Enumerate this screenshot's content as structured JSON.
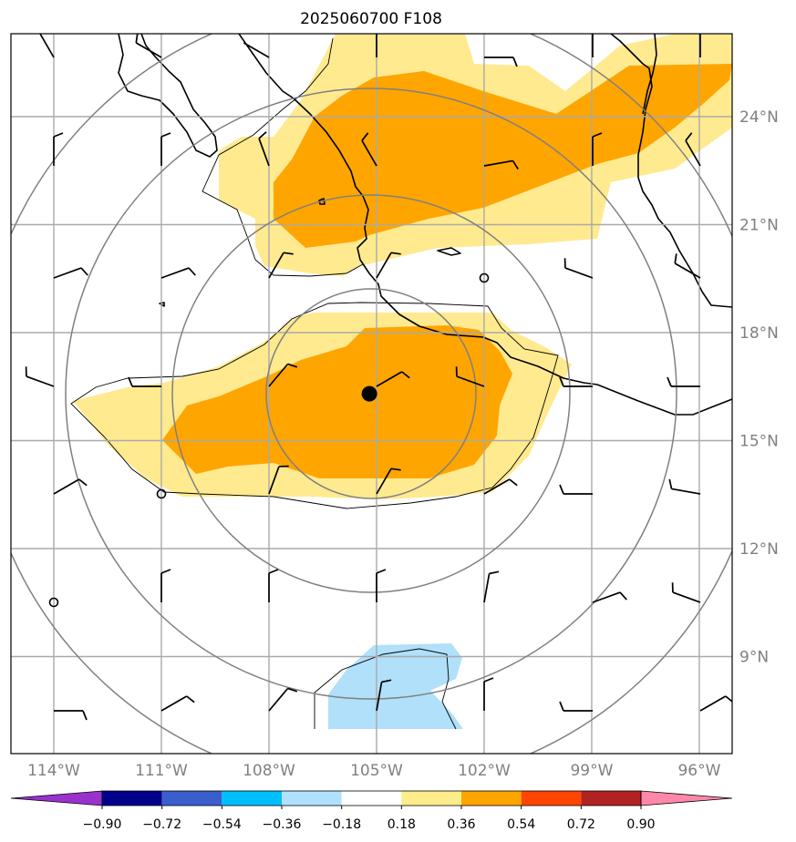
{
  "title": "2025060700 F108",
  "map": {
    "lon_range": [
      -115.2,
      -95.2
    ],
    "lat_range": [
      6.7,
      26.2
    ],
    "lat_ticks": [
      {
        "value": 24,
        "label": "24°N"
      },
      {
        "value": 21,
        "label": "21°N"
      },
      {
        "value": 18,
        "label": "18°N"
      },
      {
        "value": 15,
        "label": "15°N"
      },
      {
        "value": 12,
        "label": "12°N"
      },
      {
        "value": 9,
        "label": "9°N"
      }
    ],
    "lon_ticks": [
      {
        "value": -114,
        "label": "114°W"
      },
      {
        "value": -111,
        "label": "111°W"
      },
      {
        "value": -108,
        "label": "108°W"
      },
      {
        "value": -105,
        "label": "105°W"
      },
      {
        "value": -102,
        "label": "102°W"
      },
      {
        "value": -99,
        "label": "99°W"
      },
      {
        "value": -96,
        "label": "96°W"
      }
    ],
    "center_marker": {
      "lon": -105.2,
      "lat": 16.3
    },
    "range_ring_radii_km": [
      300,
      600,
      900,
      1200
    ],
    "shading_colors": {
      "positive_low": "#ffea90",
      "positive_mid": "#ffa500",
      "negative_low": "#b0e0fa"
    }
  },
  "colorbar": {
    "colors": [
      "#9932cc",
      "#00008b",
      "#3a5fcd",
      "#00bfff",
      "#b0e2ff",
      "#ffffff",
      "#ffec8b",
      "#ffa500",
      "#ff4500",
      "#b22222",
      "#ff88aa"
    ],
    "tick_labels": [
      "−0.90",
      "−0.72",
      "−0.54",
      "−0.36",
      "−0.18",
      "0.18",
      "0.36",
      "0.54",
      "0.72",
      "0.90"
    ]
  }
}
